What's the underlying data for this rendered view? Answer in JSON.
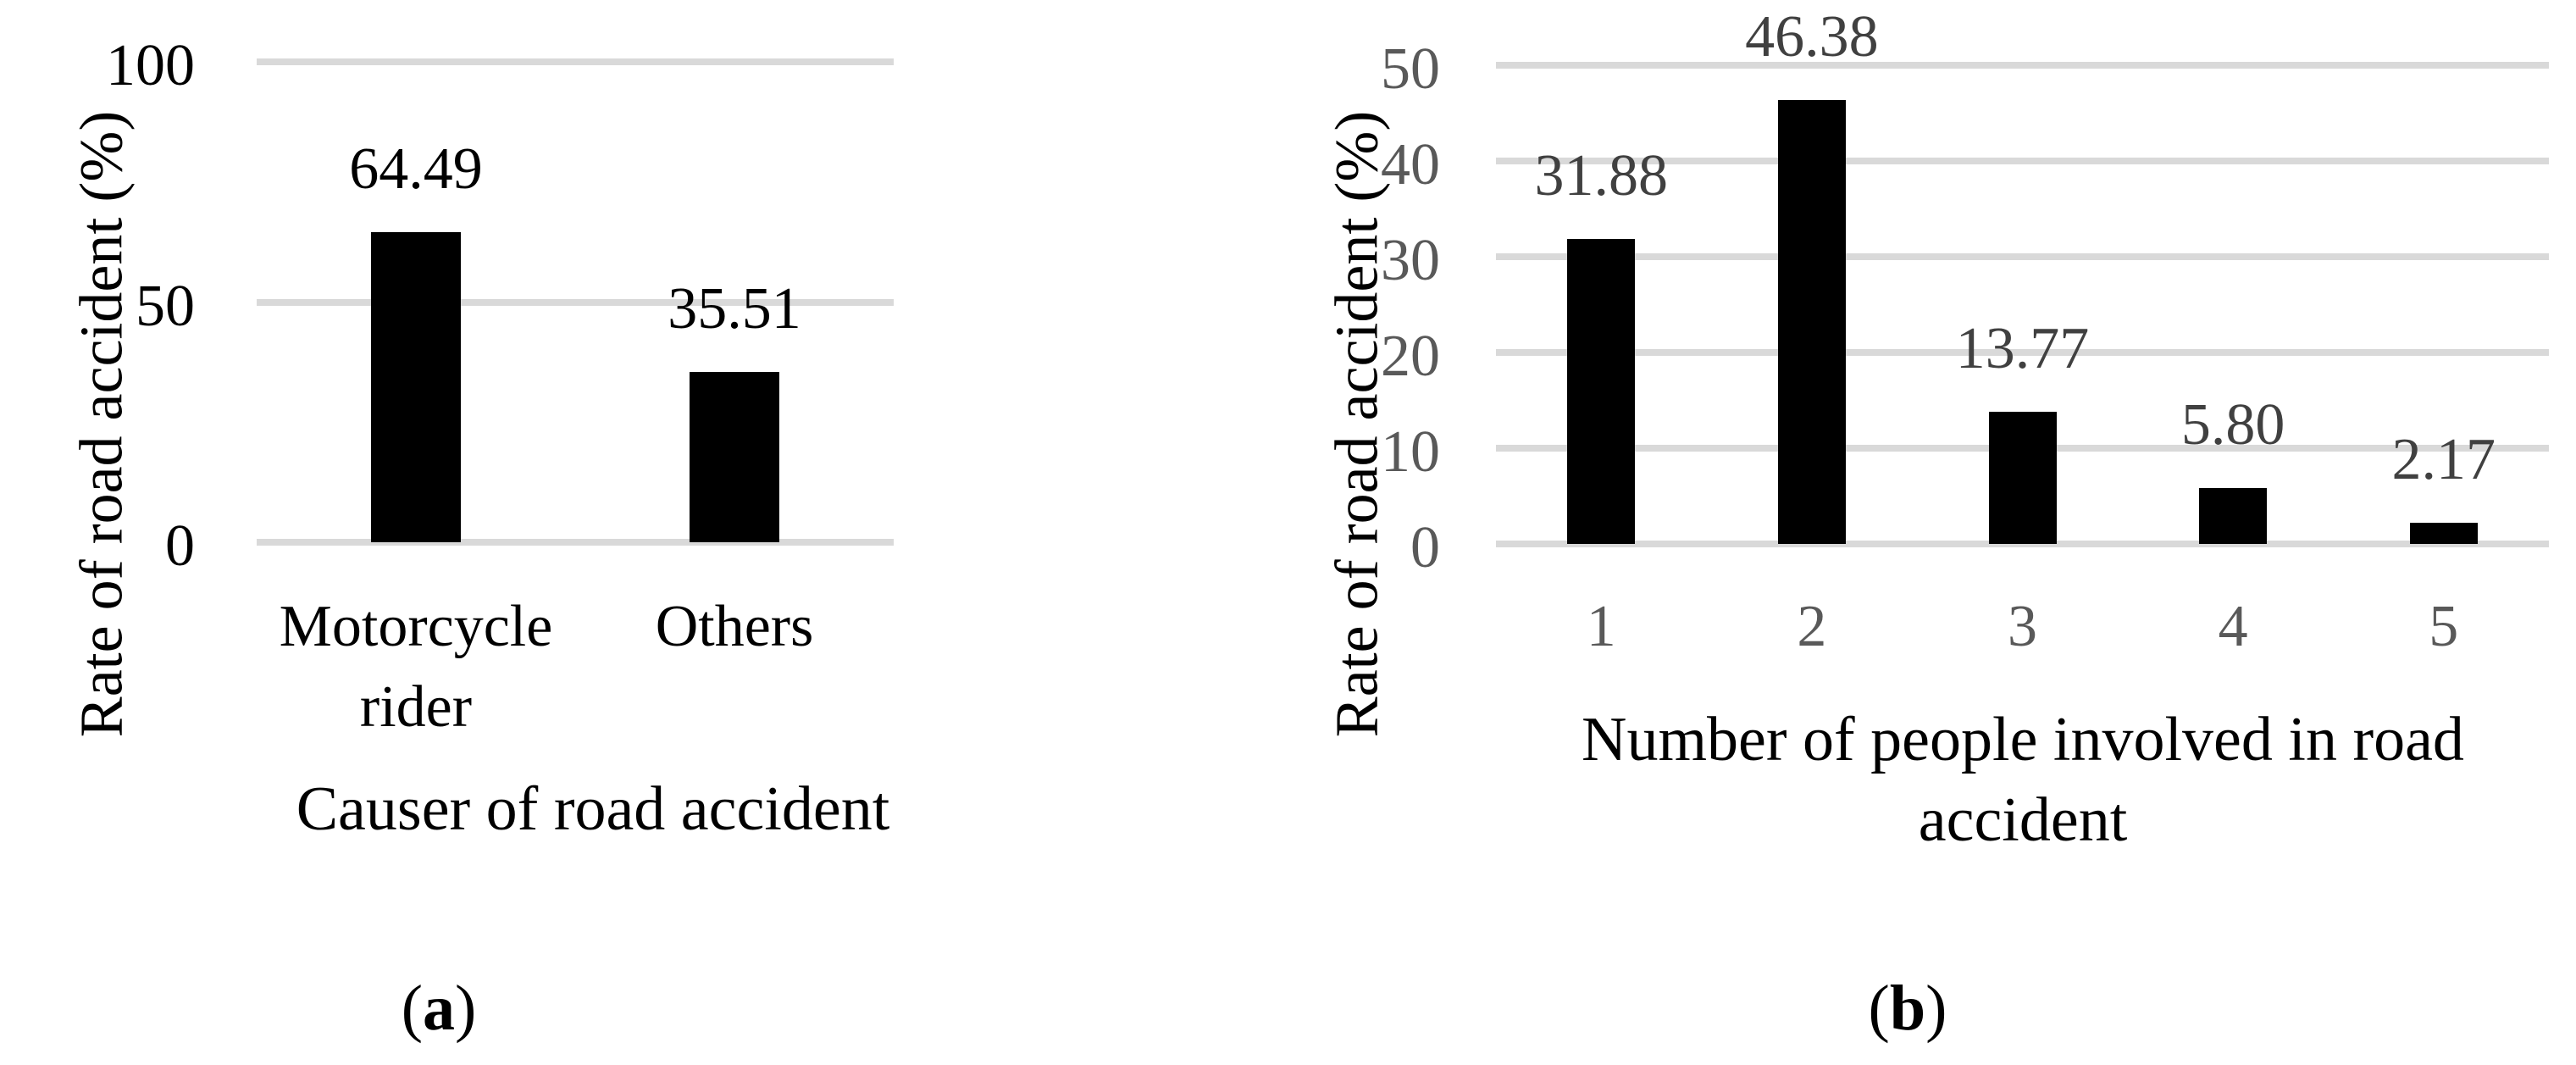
{
  "figure": {
    "background_color": "#ffffff"
  },
  "captions": {
    "a": {
      "open": "(",
      "letter": "a",
      "close": ")"
    },
    "b": {
      "open": "(",
      "letter": "b",
      "close": ")"
    }
  },
  "chart_data": [
    {
      "type": "bar",
      "panel": "a",
      "y_axis_title": "Rate of road accident (%)",
      "x_axis_title": "Causer of road accident",
      "categories": [
        "Motorcycle rider",
        "Others"
      ],
      "series": [
        {
          "name": "Rate of road accident (%)",
          "values": [
            64.49,
            35.51
          ]
        }
      ],
      "value_labels": [
        "64.49",
        "35.51"
      ],
      "ylim": [
        0,
        100
      ],
      "yticks": [
        "0",
        "50",
        "100"
      ],
      "grid": "horizontal",
      "legend": "none",
      "bar_color": "#000000",
      "gridline_color": "#d9d9d9",
      "ytick_label_color": "#000000",
      "xtick_label_color": "#000000",
      "value_label_color": "#000000",
      "axis_title_color": "#000000"
    },
    {
      "type": "bar",
      "panel": "b",
      "y_axis_title": "Rate of road accident (%)",
      "x_axis_title": "Number of people involved in road accident",
      "categories": [
        "1",
        "2",
        "3",
        "4",
        "5"
      ],
      "series": [
        {
          "name": "Rate of road accident (%)",
          "values": [
            31.88,
            46.38,
            13.77,
            5.8,
            2.17
          ]
        }
      ],
      "value_labels": [
        "31.88",
        "46.38",
        "13.77",
        "5.80",
        "2.17"
      ],
      "ylim": [
        0,
        50
      ],
      "yticks": [
        "0",
        "10",
        "20",
        "30",
        "40",
        "50"
      ],
      "grid": "horizontal",
      "legend": "none",
      "bar_color": "#000000",
      "gridline_color": "#d9d9d9",
      "ytick_label_color": "#595959",
      "xtick_label_color": "#595959",
      "value_label_color": "#404040",
      "axis_title_color": "#000000"
    }
  ]
}
